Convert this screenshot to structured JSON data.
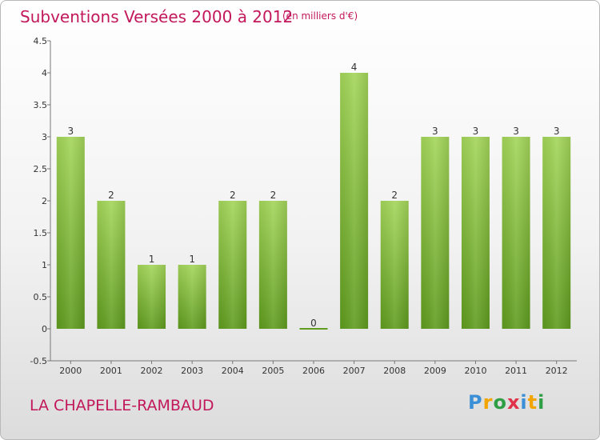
{
  "chart_data": {
    "type": "bar",
    "title": "Subventions Versées 2000 à 2012",
    "subtitle": "(en milliers d'€)",
    "categories": [
      "2000",
      "2001",
      "2002",
      "2003",
      "2004",
      "2005",
      "2006",
      "2007",
      "2008",
      "2009",
      "2010",
      "2011",
      "2012"
    ],
    "values": [
      3,
      2,
      1,
      1,
      2,
      2,
      0,
      4,
      2,
      3,
      3,
      3,
      3
    ],
    "data_labels": [
      "3",
      "2",
      "1",
      "1",
      "2",
      "2",
      "0",
      "4",
      "2",
      "3",
      "3",
      "3",
      "3"
    ],
    "ylim": [
      -0.5,
      4.5
    ],
    "yticks": [
      "-0.5",
      "0",
      "0.5",
      "1",
      "1.5",
      "2",
      "2.5",
      "3",
      "3.5",
      "4",
      "4.5"
    ],
    "xlabel": "",
    "ylabel": "",
    "grid": false,
    "bar_color": "#7ab83a"
  },
  "commune": "LA CHAPELLE-RAMBAUD",
  "logo": {
    "text": "Proxiti",
    "letters": [
      "P",
      "r",
      "o",
      "x",
      "i",
      "t",
      "i"
    ],
    "colors": [
      "#3b8fd6",
      "#f2a400",
      "#2f9e44",
      "#e0324a",
      "#3b8fd6",
      "#f2a400",
      "#2f9e44"
    ]
  },
  "colors": {
    "accent": "#c2185b"
  }
}
